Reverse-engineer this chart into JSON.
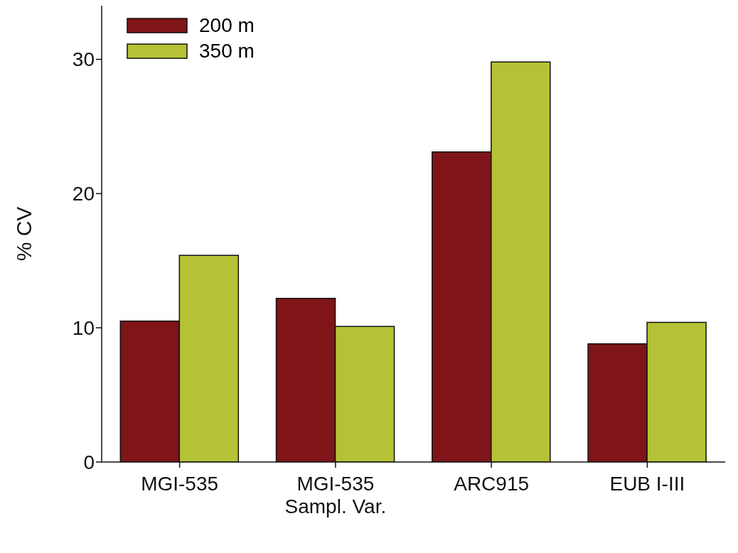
{
  "chart_data": {
    "type": "bar",
    "ylabel": "% CV",
    "categories": [
      "MGI-535",
      "MGI-535\nSampl. Var.",
      "ARC915",
      "EUB I-III"
    ],
    "series": [
      {
        "name": "200 m",
        "color": "#7f1518",
        "values": [
          10.5,
          12.2,
          23.1,
          8.8
        ]
      },
      {
        "name": "350 m",
        "color": "#b5c235",
        "values": [
          15.4,
          10.1,
          29.8,
          10.4
        ]
      }
    ],
    "ylim": [
      0,
      34
    ],
    "yticks": [
      0,
      10,
      20,
      30
    ],
    "grid": false,
    "legend": "top left"
  }
}
